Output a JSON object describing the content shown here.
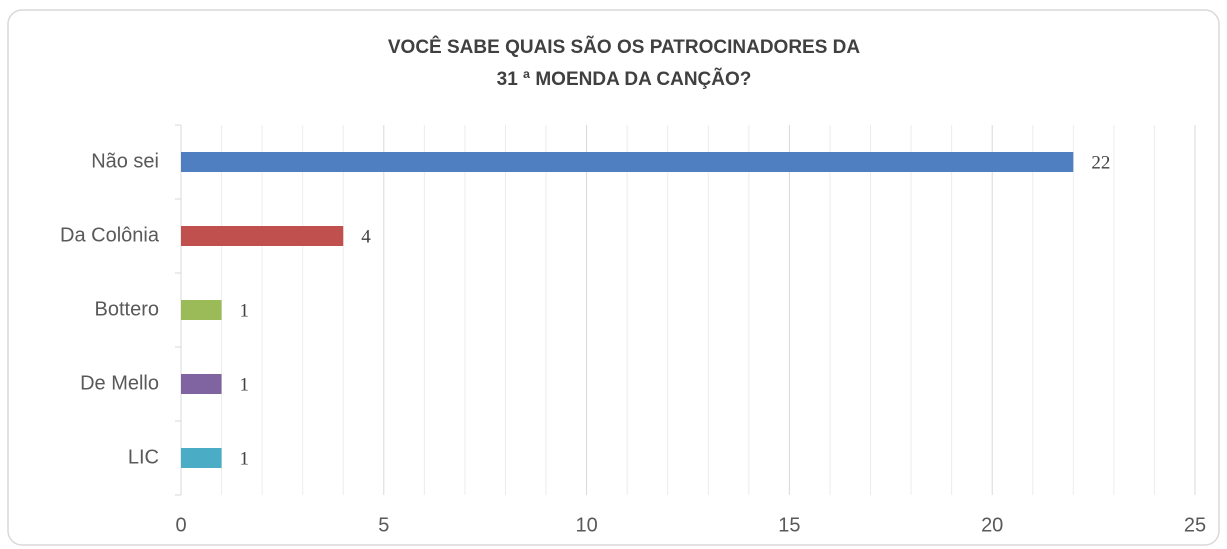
{
  "chart_data": {
    "type": "hbar",
    "title": [
      "VOCÊ SABE QUAIS SÃO OS PATROCINADORES DA",
      "31 ª MOENDA DA CANÇÃO?"
    ],
    "categories": [
      "Não sei",
      "Da Colônia",
      "Bottero",
      "De Mello",
      "LIC"
    ],
    "values": [
      22,
      4,
      1,
      1,
      1
    ],
    "colors": [
      "#4f7fc1",
      "#c0504d",
      "#9bbb59",
      "#8064a2",
      "#4bacc6"
    ],
    "xlim": [
      0,
      25
    ],
    "xticks": [
      0,
      5,
      10,
      15,
      20,
      25
    ],
    "xminorticks": [
      1,
      2,
      3,
      4,
      6,
      7,
      8,
      9,
      11,
      12,
      13,
      14,
      16,
      17,
      18,
      19,
      21,
      22,
      23,
      24
    ],
    "grid": true,
    "data_labels": true
  }
}
